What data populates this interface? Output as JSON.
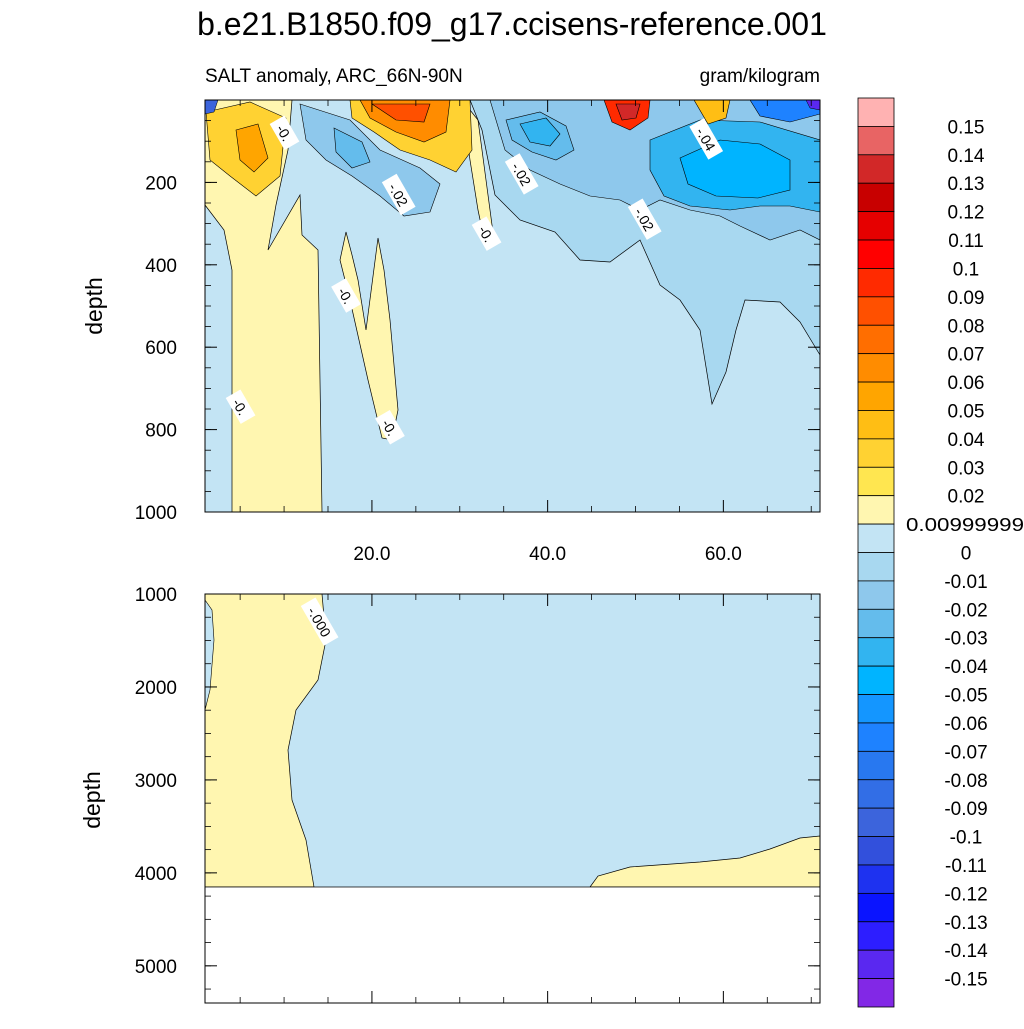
{
  "title": "b.e21.B1850.f09_g17.ccisens-reference.001",
  "subtitle_left": "SALT anomaly, ARC_66N-90N",
  "subtitle_right": "gram/kilogram",
  "colors": {
    "zero_pos": "#fff6b0",
    "zero_neg": "#c3e4f4",
    "outline": "#000000",
    "missing": "#ffffff"
  },
  "chart_data": [
    {
      "type": "heatmap",
      "panel": "upper",
      "ylabel": "depth",
      "xlim": [
        1,
        71
      ],
      "ylim": [
        1000,
        0
      ],
      "y_ticks": [
        "200",
        "400",
        "600",
        "800",
        "1000"
      ],
      "y_tick_values": [
        200,
        400,
        600,
        800,
        1000
      ],
      "x_ticks": [
        "20.0",
        "40.0",
        "60.0"
      ],
      "x_tick_values": [
        20,
        40,
        60
      ],
      "contour_labels": [
        {
          "text": "-0.",
          "x": 10,
          "y": 80
        },
        {
          "text": "-.02",
          "x": 23,
          "y": 230
        },
        {
          "text": "-.02",
          "x": 37,
          "y": 180
        },
        {
          "text": "-.04",
          "x": 58,
          "y": 95
        },
        {
          "text": "-.02",
          "x": 51,
          "y": 290
        },
        {
          "text": "-0.",
          "x": 33,
          "y": 325
        },
        {
          "text": "-0.",
          "x": 17,
          "y": 475
        },
        {
          "text": "-0.",
          "x": 5,
          "y": 745
        },
        {
          "text": "-0.",
          "x": 22,
          "y": 795
        }
      ]
    },
    {
      "type": "heatmap",
      "panel": "lower",
      "ylabel": "depth",
      "xlim": [
        1,
        71
      ],
      "ylim": [
        5400,
        1000
      ],
      "y_ticks": [
        "1000",
        "2000",
        "3000",
        "4000",
        "5000"
      ],
      "y_tick_values": [
        1000,
        2000,
        3000,
        4000,
        5000
      ],
      "bottom_depth": 4125,
      "contour_labels": [
        {
          "text": "-.000",
          "x": 14,
          "y": 1300
        }
      ]
    }
  ],
  "colorbar": {
    "labels": [
      "0.15",
      "0.14",
      "0.13",
      "0.12",
      "0.11",
      "0.1",
      "0.09",
      "0.08",
      "0.07",
      "0.06",
      "0.05",
      "0.04",
      "0.03",
      "0.02",
      "0.00999999",
      "0",
      "-0.01",
      "-0.02",
      "-0.03",
      "-0.04",
      "-0.05",
      "-0.06",
      "-0.07",
      "-0.08",
      "-0.09",
      "-0.1",
      "-0.11",
      "-0.12",
      "-0.13",
      "-0.14",
      "-0.15"
    ],
    "colors": [
      "#ffb2b2",
      "#e86464",
      "#d22828",
      "#c80000",
      "#e60000",
      "#ff0000",
      "#ff2a00",
      "#ff5000",
      "#ff6e00",
      "#ff8c00",
      "#ffa500",
      "#ffbe14",
      "#ffd232",
      "#ffe650",
      "#fff6b0",
      "#c3e4f4",
      "#a8d8f0",
      "#8ec8ec",
      "#64bcec",
      "#32b4f0",
      "#00b4ff",
      "#1496ff",
      "#1e82ff",
      "#2878f0",
      "#326ee6",
      "#3c64dc",
      "#3250dc",
      "#1e32f0",
      "#0a14ff",
      "#2d1eff",
      "#5a28f0",
      "#8228e6"
    ]
  }
}
